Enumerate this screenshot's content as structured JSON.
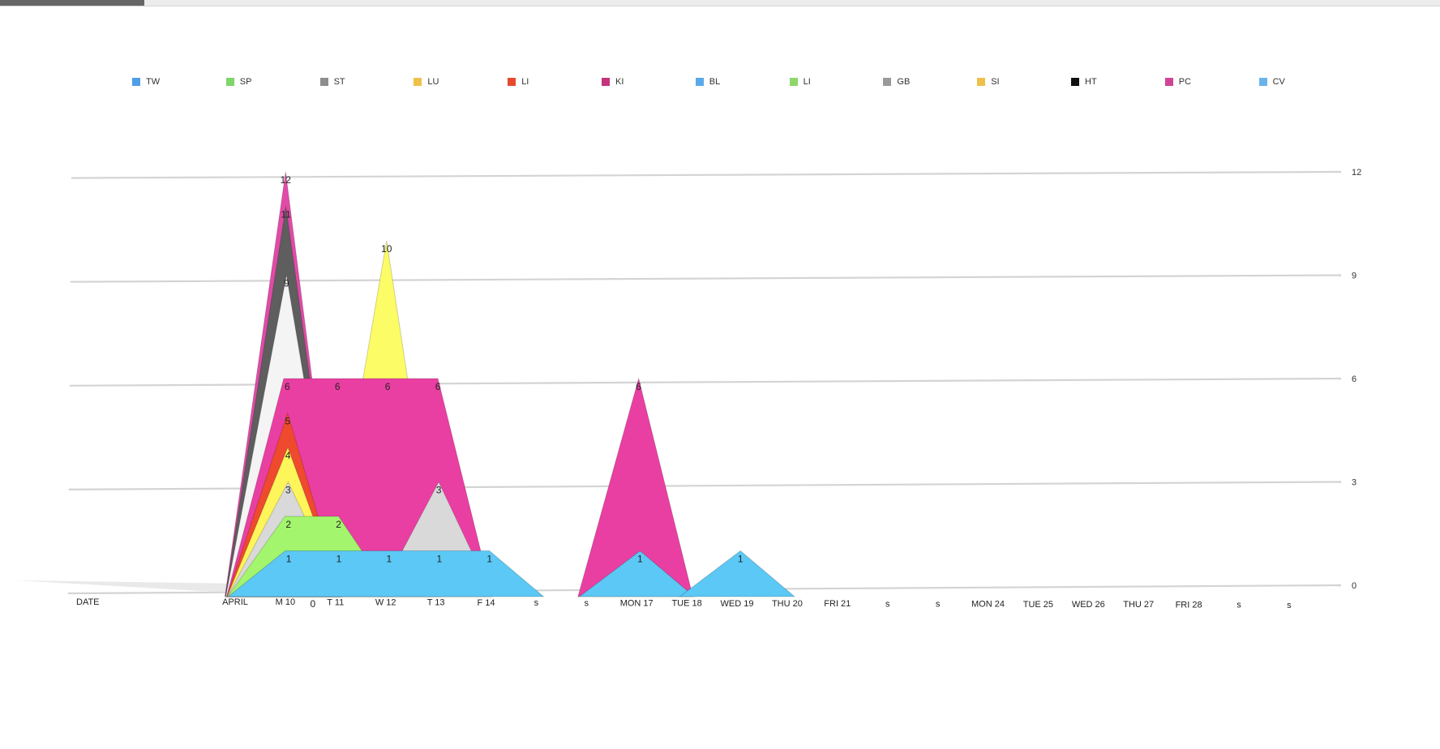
{
  "chart_data": {
    "type": "area",
    "title": "",
    "xlabel": "",
    "ylabel": "",
    "ylim": [
      0,
      12
    ],
    "grid": true,
    "legend_position": "top",
    "first_label": "DATE",
    "categories": [
      "APRIL",
      "M 10",
      "T 11",
      "W 12",
      "T 13",
      "F 14",
      "s",
      "s",
      "MON 17",
      "TUE 18",
      "WED 19",
      "THU 20",
      "FRI 21",
      "s",
      "s",
      "MON 24",
      "TUE 25",
      "WED 26",
      "THU 27",
      "FRI 28",
      "s",
      "s"
    ],
    "y_ticks": [
      0,
      3,
      6,
      9,
      12
    ],
    "series": [
      {
        "name": "TW",
        "color": "#5bc8f5",
        "values": [
          0,
          1,
          1,
          1,
          1,
          1,
          0,
          0,
          1,
          0,
          1,
          0,
          0,
          0,
          0,
          0,
          0,
          0,
          0,
          0,
          0,
          0
        ]
      },
      {
        "name": "SP",
        "color": "#a3f56d",
        "values": [
          0,
          2,
          2,
          0,
          0,
          0,
          0,
          0,
          0,
          0,
          0,
          0,
          0,
          0,
          0,
          0,
          0,
          0,
          0,
          0,
          0,
          0
        ]
      },
      {
        "name": "ST",
        "color": "#d9d9d9",
        "values": [
          0,
          3,
          0,
          0,
          3,
          0,
          0,
          0,
          0,
          0,
          0,
          0,
          0,
          0,
          0,
          0,
          0,
          0,
          0,
          0,
          0,
          0
        ]
      },
      {
        "name": "LU",
        "color": "#fdf55a",
        "values": [
          0,
          4,
          0,
          0,
          0,
          0,
          0,
          0,
          0,
          0,
          0,
          0,
          0,
          0,
          0,
          0,
          0,
          0,
          0,
          0,
          0,
          0
        ]
      },
      {
        "name": "LI",
        "color": "#ef4a2e",
        "values": [
          0,
          5,
          0,
          0,
          0,
          0,
          0,
          0,
          0,
          0,
          0,
          0,
          0,
          0,
          0,
          0,
          0,
          0,
          0,
          0,
          0,
          0
        ]
      },
      {
        "name": "KI",
        "color": "#ea3fa2",
        "values": [
          0,
          6,
          6,
          6,
          6,
          0,
          0,
          0,
          6,
          0,
          0,
          0,
          0,
          0,
          0,
          0,
          0,
          0,
          0,
          0,
          0,
          0
        ]
      },
      {
        "name": "BL",
        "color": "#5aa9ea",
        "values": [
          0,
          0,
          0,
          0,
          0,
          0,
          0,
          0,
          0,
          0,
          0,
          0,
          0,
          0,
          0,
          0,
          0,
          0,
          0,
          0,
          0,
          0
        ]
      },
      {
        "name": "LI",
        "color": "#8ed66a",
        "values": [
          0,
          0,
          0,
          0,
          0,
          0,
          0,
          0,
          0,
          0,
          0,
          0,
          0,
          0,
          0,
          0,
          0,
          0,
          0,
          0,
          0,
          0
        ]
      },
      {
        "name": "GB",
        "color": "#f4f4f4",
        "values": [
          0,
          9,
          0,
          0,
          0,
          0,
          0,
          0,
          0,
          0,
          0,
          0,
          0,
          0,
          0,
          0,
          0,
          0,
          0,
          0,
          0,
          0
        ]
      },
      {
        "name": "SI",
        "color": "#fcfc66",
        "values": [
          0,
          0,
          0,
          10,
          0,
          0,
          0,
          0,
          0,
          0,
          0,
          0,
          0,
          0,
          0,
          0,
          0,
          0,
          0,
          0,
          0,
          0
        ]
      },
      {
        "name": "HT",
        "color": "#5e5e5e",
        "values": [
          0,
          11,
          0,
          0,
          0,
          0,
          0,
          0,
          0,
          0,
          0,
          0,
          0,
          0,
          0,
          0,
          0,
          0,
          0,
          0,
          0,
          0
        ]
      },
      {
        "name": "PC",
        "color": "#e24aa8",
        "values": [
          0,
          12,
          0,
          0,
          0,
          0,
          0,
          0,
          0,
          0,
          0,
          0,
          0,
          0,
          0,
          0,
          0,
          0,
          0,
          0,
          0,
          0
        ]
      },
      {
        "name": "CV",
        "color": "#6ab4ec",
        "values": [
          0,
          0,
          0,
          0,
          0,
          0,
          0,
          0,
          0,
          0,
          0,
          0,
          0,
          0,
          0,
          0,
          0,
          0,
          0,
          0,
          0,
          0
        ]
      }
    ],
    "legend": [
      {
        "name": "TW",
        "color": "#4e9fe6"
      },
      {
        "name": "SP",
        "color": "#7fd46a"
      },
      {
        "name": "ST",
        "color": "#8e8e8e"
      },
      {
        "name": "LU",
        "color": "#efc14a"
      },
      {
        "name": "LI",
        "color": "#e64a2e"
      },
      {
        "name": "KI",
        "color": "#c4347e"
      },
      {
        "name": "BL",
        "color": "#5aa9ea"
      },
      {
        "name": "LI",
        "color": "#8ed66a"
      },
      {
        "name": "GB",
        "color": "#9a9a9a"
      },
      {
        "name": "SI",
        "color": "#efc14a"
      },
      {
        "name": "HT",
        "color": "#111111"
      },
      {
        "name": "PC",
        "color": "#d04593"
      },
      {
        "name": "CV",
        "color": "#6ab4ec"
      }
    ],
    "extra_labels": [
      {
        "text": "0",
        "category": "T 11"
      }
    ]
  },
  "ui": {
    "progress_fraction": 0.1
  }
}
